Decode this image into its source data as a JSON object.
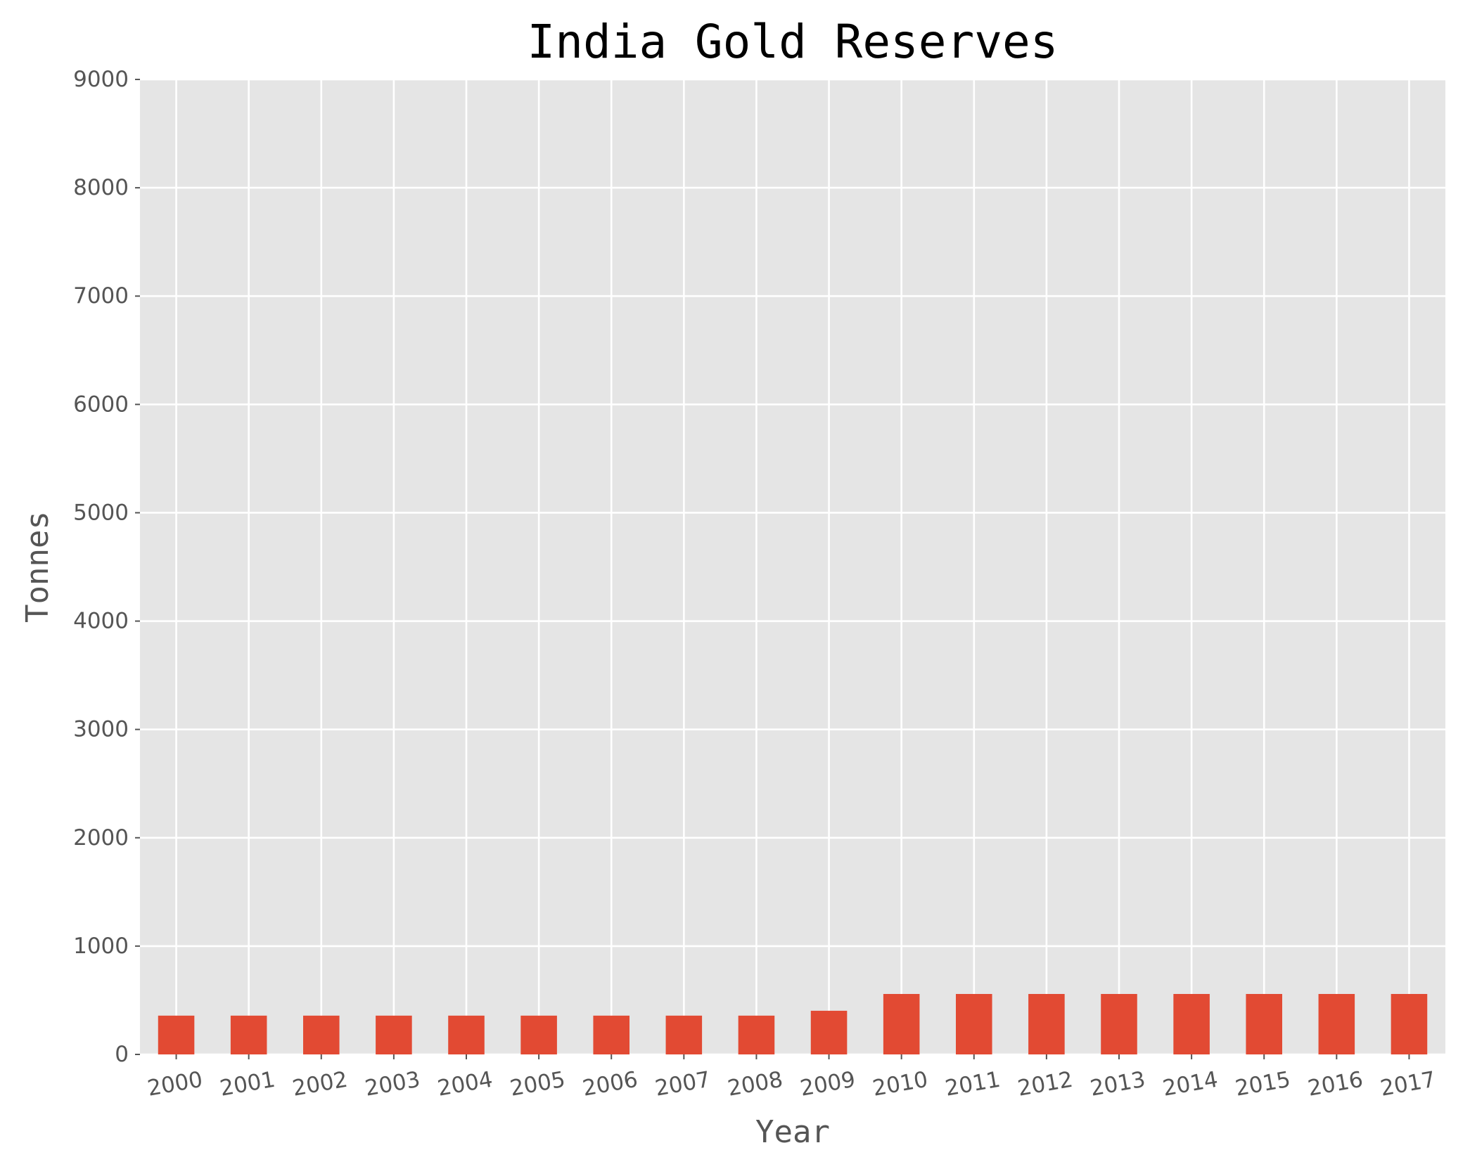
{
  "chart_data": {
    "type": "bar",
    "title": "India Gold Reserves",
    "xlabel": "Year",
    "ylabel": "Tonnes",
    "ylim": [
      0,
      9000
    ],
    "yticks": [
      0,
      1000,
      2000,
      3000,
      4000,
      5000,
      6000,
      7000,
      8000,
      9000
    ],
    "categories": [
      "2000",
      "2001",
      "2002",
      "2003",
      "2004",
      "2005",
      "2006",
      "2007",
      "2008",
      "2009",
      "2010",
      "2011",
      "2012",
      "2013",
      "2014",
      "2015",
      "2016",
      "2017"
    ],
    "values": [
      358,
      358,
      358,
      358,
      358,
      358,
      358,
      358,
      358,
      403,
      558,
      558,
      558,
      558,
      558,
      558,
      558,
      558
    ],
    "grid": true,
    "colors": {
      "bar": "#E24A33",
      "plot_background": "#E5E5E5",
      "grid": "#FFFFFF",
      "tick_text": "#555555",
      "label_text": "#555555",
      "title_text": "#000000"
    }
  }
}
